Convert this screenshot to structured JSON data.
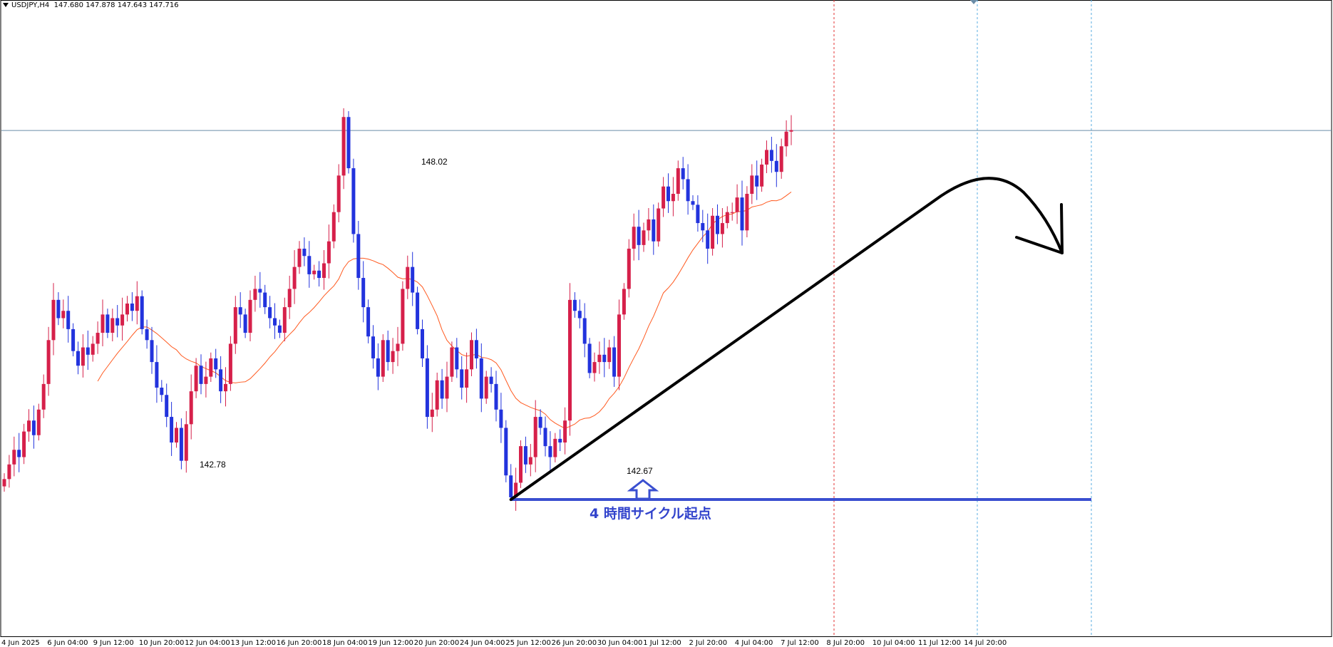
{
  "header": {
    "symbol": "USDJPY,H4",
    "ohlc": "147.680 147.878 147.643 147.716"
  },
  "annotations": {
    "high_label": "148.02",
    "low_left_label": "142.78",
    "low_label": "142.67",
    "cycle_label": "4 時間サイクル起点"
  },
  "colors": {
    "bull": "#d6204a",
    "bear": "#2233dd",
    "ma": "#ff5a20",
    "support": "#3a4fd0",
    "current_price_line": "#6a8da8",
    "red_vline": "#e33333",
    "blue_vline": "#5aaee0"
  },
  "chart_data": {
    "type": "candlestick",
    "symbol": "USDJPY",
    "timeframe": "H4",
    "y_range": [
      140.8,
      149.5
    ],
    "current_price": 147.716,
    "x_tick_labels": [
      "4 Jun 2025",
      "6 Jun 04:00",
      "9 Jun 12:00",
      "10 Jun 20:00",
      "12 Jun 04:00",
      "13 Jun 12:00",
      "16 Jun 20:00",
      "18 Jun 04:00",
      "19 Jun 12:00",
      "20 Jun 20:00",
      "24 Jun 04:00",
      "25 Jun 12:00",
      "26 Jun 20:00",
      "30 Jun 04:00",
      "1 Jul 12:00",
      "2 Jul 20:00",
      "4 Jul 04:00",
      "7 Jul 12:00",
      "8 Jul 20:00",
      "10 Jul 04:00",
      "11 Jul 12:00",
      "14 Jul 20:00"
    ],
    "closes": [
      142.95,
      143.15,
      143.35,
      143.25,
      143.6,
      143.75,
      143.55,
      143.9,
      144.25,
      144.85,
      145.4,
      145.15,
      145.25,
      145.0,
      144.7,
      144.5,
      144.75,
      144.65,
      144.8,
      144.95,
      145.2,
      144.95,
      145.15,
      145.05,
      145.2,
      145.35,
      145.25,
      145.45,
      145.0,
      144.85,
      144.55,
      144.2,
      144.1,
      143.8,
      143.45,
      143.65,
      143.2,
      143.7,
      144.15,
      144.5,
      144.25,
      144.35,
      144.6,
      144.45,
      144.15,
      144.25,
      144.8,
      145.3,
      145.2,
      144.95,
      145.4,
      145.55,
      145.5,
      145.3,
      145.15,
      145.05,
      144.95,
      145.3,
      145.55,
      145.85,
      146.1,
      146.0,
      145.75,
      145.8,
      145.7,
      145.9,
      146.2,
      146.6,
      147.1,
      147.9,
      147.2,
      146.3,
      145.7,
      145.3,
      144.9,
      144.6,
      144.35,
      144.85,
      144.55,
      144.7,
      144.8,
      145.55,
      145.85,
      145.5,
      145.0,
      144.6,
      143.8,
      143.9,
      144.3,
      144.05,
      144.35,
      144.75,
      144.45,
      144.2,
      144.45,
      144.85,
      144.6,
      144.05,
      144.35,
      144.25,
      143.9,
      143.65,
      143.0,
      142.7,
      142.9,
      143.4,
      143.15,
      143.25,
      143.8,
      143.65,
      143.4,
      143.25,
      143.5,
      143.45,
      143.75,
      145.4,
      145.25,
      145.15,
      144.8,
      144.4,
      144.55,
      144.65,
      144.55,
      144.75,
      144.35,
      145.2,
      145.55,
      146.1,
      146.4,
      146.15,
      146.35,
      146.5,
      146.2,
      146.65,
      146.95,
      146.75,
      146.85,
      147.2,
      147.05,
      146.75,
      146.7,
      146.45,
      146.35,
      146.1,
      146.55,
      146.3,
      146.45,
      146.6,
      146.6,
      146.8,
      146.35,
      146.85,
      147.1,
      146.95,
      147.25,
      147.45,
      147.3,
      147.15,
      147.5,
      147.7,
      147.72
    ]
  }
}
